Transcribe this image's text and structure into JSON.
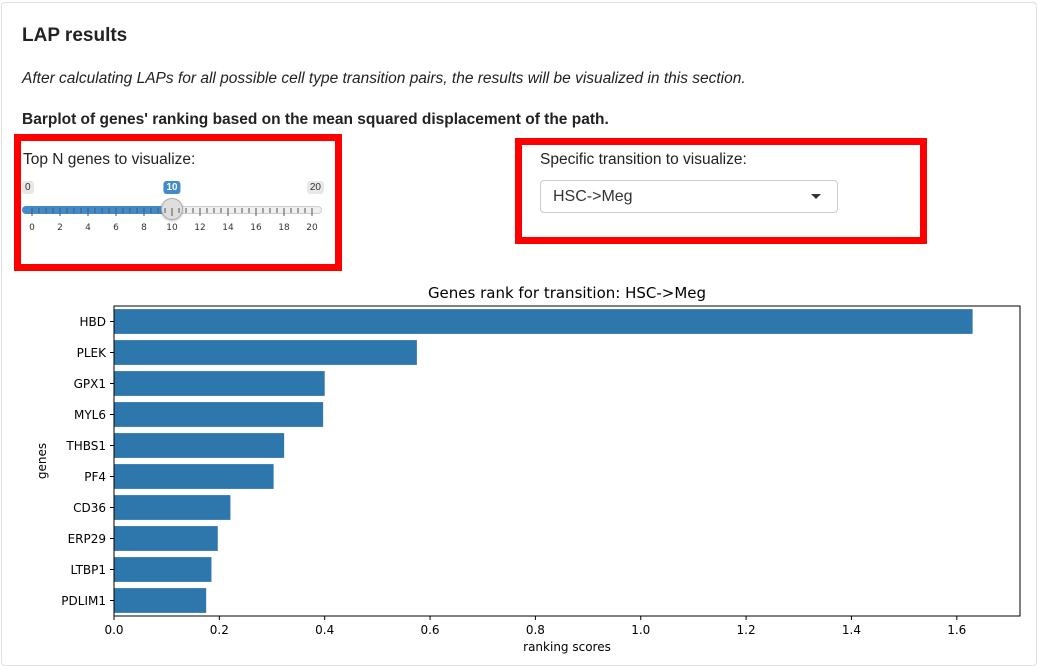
{
  "section": {
    "title": "LAP results",
    "description": "After calculating LAPs for all possible cell type transition pairs, the results will be visualized in this section.",
    "barplot_heading": "Barplot of genes' ranking based on the mean squared displacement of the path."
  },
  "slider": {
    "label": "Top N genes to visualize:",
    "min": "0",
    "max": "20",
    "value": "10",
    "ticks": [
      "0",
      "2",
      "4",
      "6",
      "8",
      "10",
      "12",
      "14",
      "16",
      "18",
      "20"
    ],
    "accent_color": "#428bca"
  },
  "transition_select": {
    "label": "Specific transition to visualize:",
    "selected": "HSC->Meg"
  },
  "highlight_color": "#ff0000",
  "chart_data": {
    "type": "bar",
    "orientation": "horizontal",
    "title": "Genes rank for transition: HSC->Meg",
    "xlabel": "ranking scores",
    "ylabel": "genes",
    "categories": [
      "HBD",
      "PLEK",
      "GPX1",
      "MYL6",
      "THBS1",
      "PF4",
      "CD36",
      "ERP29",
      "LTBP1",
      "PDLIM1"
    ],
    "values": [
      1.63,
      0.575,
      0.4,
      0.397,
      0.323,
      0.303,
      0.221,
      0.197,
      0.185,
      0.175
    ],
    "xlim": [
      0,
      1.72
    ],
    "xticks": [
      "0.0",
      "0.2",
      "0.4",
      "0.6",
      "0.8",
      "1.0",
      "1.2",
      "1.4",
      "1.6"
    ],
    "bar_color": "#2e77ad",
    "grid": false
  }
}
